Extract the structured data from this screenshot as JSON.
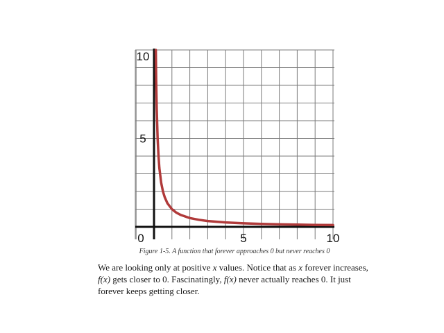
{
  "chart_data": {
    "type": "line",
    "function": "f(x) = 1/x",
    "series": [
      {
        "x": [
          0.1,
          0.12,
          0.15,
          0.2,
          0.25,
          0.3,
          0.4,
          0.5,
          0.6,
          0.75,
          1,
          1.25,
          1.5,
          2,
          2.5,
          3,
          4,
          5,
          6,
          7,
          8,
          9,
          10
        ],
        "y": [
          10,
          8.33,
          6.67,
          5,
          4,
          3.33,
          2.5,
          2,
          1.67,
          1.33,
          1,
          0.8,
          0.67,
          0.5,
          0.4,
          0.33,
          0.25,
          0.2,
          0.17,
          0.14,
          0.125,
          0.11,
          0.1
        ],
        "color": "#b03a3a"
      }
    ],
    "xlim": [
      -1,
      10
    ],
    "ylim": [
      0,
      10
    ],
    "x_ticks": [
      "0",
      "5",
      "10"
    ],
    "y_ticks": [
      "5",
      "10"
    ],
    "grid": true,
    "grid_color": "#7a7a7a",
    "axis_color": "#111111"
  },
  "caption": "Figure 1-5. A function that forever approaches 0 but never reaches 0",
  "paragraph": {
    "s1": "We are looking only at positive ",
    "x1": "x",
    "s2": " values. Notice that as ",
    "x2": "x",
    "s3": " forever increases,",
    "fx1": "f(x)",
    "s4": " gets closer to 0. Fascinatingly, ",
    "fx2": "f(x)",
    "s5": " never actually reaches 0. It just",
    "s6": "forever keeps getting closer."
  }
}
